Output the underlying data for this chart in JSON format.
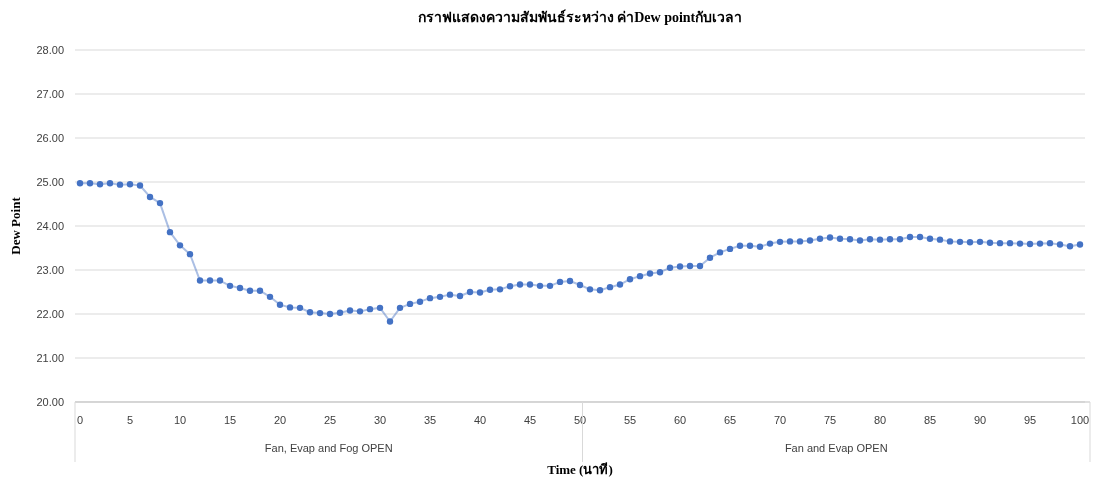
{
  "chart_data": {
    "type": "line",
    "title": "กราฟแสดงความสัมพันธ์ระหว่าง ค่าDew pointกับเวลา",
    "xlabel": "Time (นาที)",
    "ylabel": "Dew Point",
    "annotations": [
      "Fan, Evap and Fog OPEN",
      "Fan and Evap  OPEN"
    ],
    "x": [
      0,
      1,
      2,
      3,
      4,
      5,
      6,
      7,
      8,
      9,
      10,
      11,
      12,
      13,
      14,
      15,
      16,
      17,
      18,
      19,
      20,
      21,
      22,
      23,
      24,
      25,
      26,
      27,
      28,
      29,
      30,
      31,
      32,
      33,
      34,
      35,
      36,
      37,
      38,
      39,
      40,
      41,
      42,
      43,
      44,
      45,
      46,
      47,
      48,
      49,
      50,
      51,
      52,
      53,
      54,
      55,
      56,
      57,
      58,
      59,
      60,
      61,
      62,
      63,
      64,
      65,
      66,
      67,
      68,
      69,
      70,
      71,
      72,
      73,
      74,
      75,
      76,
      77,
      78,
      79,
      80,
      81,
      82,
      83,
      84,
      85,
      86,
      87,
      88,
      89,
      90,
      91,
      92,
      93,
      94,
      95,
      96,
      97,
      98,
      99,
      100
    ],
    "series": [
      {
        "color": "#4472c4",
        "values": [
          24.97,
          24.97,
          24.95,
          24.97,
          24.94,
          24.95,
          24.92,
          24.66,
          24.52,
          23.86,
          23.56,
          23.36,
          22.76,
          22.76,
          22.76,
          22.64,
          22.59,
          22.53,
          22.53,
          22.39,
          22.21,
          22.15,
          22.14,
          22.04,
          22.02,
          22.0,
          22.03,
          22.08,
          22.06,
          22.11,
          22.14,
          21.83,
          22.14,
          22.23,
          22.28,
          22.36,
          22.39,
          22.44,
          22.41,
          22.5,
          22.49,
          22.55,
          22.56,
          22.63,
          22.67,
          22.67,
          22.64,
          22.64,
          22.73,
          22.75,
          22.66,
          22.56,
          22.54,
          22.61,
          22.67,
          22.79,
          22.86,
          22.92,
          22.95,
          23.05,
          23.08,
          23.09,
          23.09,
          23.28,
          23.4,
          23.48,
          23.55,
          23.55,
          23.53,
          23.6,
          23.64,
          23.65,
          23.65,
          23.67,
          23.71,
          23.74,
          23.71,
          23.7,
          23.67,
          23.7,
          23.69,
          23.7,
          23.7,
          23.75,
          23.75,
          23.71,
          23.69,
          23.65,
          23.64,
          23.63,
          23.64,
          23.62,
          23.61,
          23.61,
          23.6,
          23.59,
          23.6,
          23.61,
          23.58,
          23.54,
          23.58
        ]
      }
    ],
    "xlim": [
      0,
      100
    ],
    "ylim": [
      20,
      28
    ],
    "xticks": [
      0,
      5,
      10,
      15,
      20,
      25,
      30,
      35,
      40,
      45,
      50,
      55,
      60,
      65,
      70,
      75,
      80,
      85,
      90,
      95,
      100
    ],
    "yticks": [
      {
        "value": 20,
        "label": "20.00"
      },
      {
        "value": 21,
        "label": "21.00"
      },
      {
        "value": 22,
        "label": "22.00"
      },
      {
        "value": 23,
        "label": "23.00"
      },
      {
        "value": 24,
        "label": "24.00"
      },
      {
        "value": 25,
        "label": "25.00"
      },
      {
        "value": 26,
        "label": "26.00"
      },
      {
        "value": 27,
        "label": "27.00"
      },
      {
        "value": 28,
        "label": "28.00"
      }
    ],
    "grid": "y",
    "marker": "circle",
    "line_style": "solid"
  }
}
